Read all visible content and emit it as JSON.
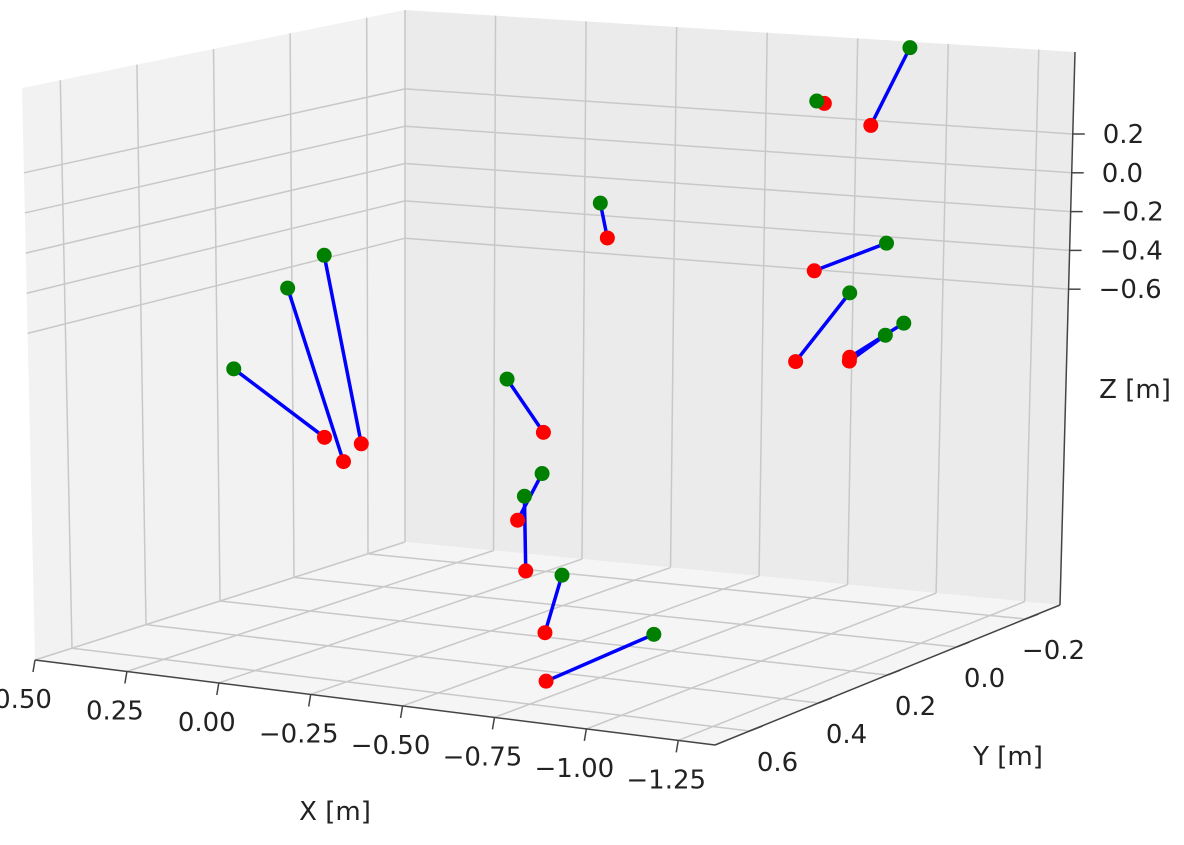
{
  "chart_data": {
    "type": "scatter",
    "projection": "3d",
    "title": "",
    "xlabel": "X  [m]",
    "ylabel": "Y  [m]",
    "zlabel": "Z  [m]",
    "x_ticks": [
      "0.50",
      "0.25",
      "0.00",
      "−0.25",
      "−0.50",
      "−0.75",
      "−1.00",
      "−1.25"
    ],
    "y_ticks": [
      "−0.2",
      "0.0",
      "0.2",
      "0.4",
      "0.6"
    ],
    "z_ticks": [
      "0.2",
      "0.0",
      "−0.2",
      "−0.4",
      "−0.6"
    ],
    "grid": true,
    "series": [
      {
        "color": "#008000",
        "marker": "o"
      },
      {
        "color": "#ff0000",
        "marker": "o"
      },
      {
        "color": "#0000ff",
        "marker": "line"
      }
    ],
    "pairs": [
      {
        "green": [
          -1.0,
          -0.2,
          0.35
        ],
        "red": [
          -1.0,
          -0.1,
          0.22
        ]
      },
      {
        "green": [
          -0.85,
          -0.1,
          0.26
        ],
        "red": [
          -0.85,
          -0.12,
          0.25
        ]
      },
      {
        "green": [
          -1.15,
          0.0,
          0.02
        ],
        "red": [
          -0.95,
          0.0,
          -0.05
        ]
      },
      {
        "green": [
          -1.1,
          0.05,
          -0.07
        ],
        "red": [
          -0.95,
          0.05,
          -0.22
        ]
      },
      {
        "green": [
          -1.25,
          0.05,
          -0.12
        ],
        "red": [
          -1.1,
          0.05,
          -0.2
        ]
      },
      {
        "green": [
          -1.25,
          0.1,
          -0.13
        ],
        "red": [
          -1.15,
          0.1,
          -0.19
        ]
      },
      {
        "green": [
          -0.2,
          -0.15,
          0.0
        ],
        "red": [
          -0.22,
          -0.15,
          -0.07
        ]
      },
      {
        "green": [
          0.2,
          0.2,
          -0.06
        ],
        "red": [
          0.0,
          0.3,
          -0.4
        ]
      },
      {
        "green": [
          0.25,
          0.25,
          -0.12
        ],
        "red": [
          0.05,
          0.3,
          -0.44
        ]
      },
      {
        "green": [
          0.35,
          0.3,
          -0.28
        ],
        "red": [
          0.05,
          0.35,
          -0.38
        ]
      },
      {
        "green": [
          -0.2,
          0.1,
          -0.3
        ],
        "red": [
          -0.3,
          0.1,
          -0.4
        ]
      },
      {
        "green": [
          -0.55,
          0.35,
          -0.4
        ],
        "red": [
          -0.48,
          0.35,
          -0.5
        ]
      },
      {
        "green": [
          -0.5,
          0.35,
          -0.45
        ],
        "red": [
          -0.5,
          0.35,
          -0.6
        ]
      },
      {
        "green": [
          -0.6,
          0.35,
          -0.6
        ],
        "red": [
          -0.55,
          0.35,
          -0.72
        ]
      },
      {
        "green": [
          -0.9,
          0.4,
          -0.68
        ],
        "red": [
          -0.6,
          0.4,
          -0.8
        ]
      }
    ]
  }
}
